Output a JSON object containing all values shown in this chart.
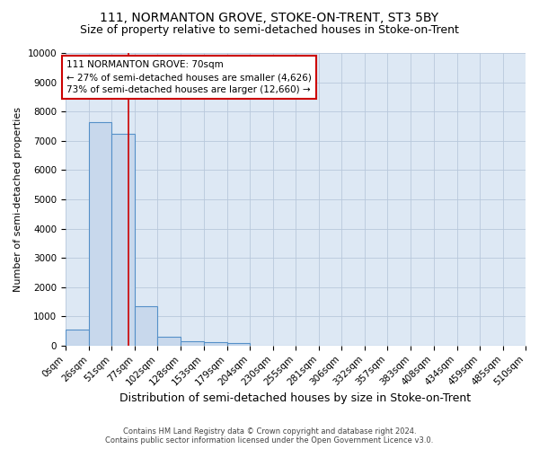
{
  "title": "111, NORMANTON GROVE, STOKE-ON-TRENT, ST3 5BY",
  "subtitle": "Size of property relative to semi-detached houses in Stoke-on-Trent",
  "xlabel": "Distribution of semi-detached houses by size in Stoke-on-Trent",
  "ylabel": "Number of semi-detached properties",
  "footer_line1": "Contains HM Land Registry data © Crown copyright and database right 2024.",
  "footer_line2": "Contains public sector information licensed under the Open Government Licence v3.0.",
  "annotation_title": "111 NORMANTON GROVE: 70sqm",
  "annotation_line1": "← 27% of semi-detached houses are smaller (4,626)",
  "annotation_line2": "73% of semi-detached houses are larger (12,660) →",
  "property_size": 70,
  "bin_edges": [
    0,
    26,
    51,
    77,
    102,
    128,
    153,
    179,
    204,
    230,
    255,
    281,
    306,
    332,
    357,
    383,
    408,
    434,
    459,
    485,
    510
  ],
  "bin_heights": [
    560,
    7650,
    7250,
    1350,
    310,
    160,
    110,
    90,
    0,
    0,
    0,
    0,
    0,
    0,
    0,
    0,
    0,
    0,
    0,
    0
  ],
  "bar_color": "#c8d8ec",
  "bar_edge_color": "#5590c8",
  "vline_color": "#cc0000",
  "vline_x": 70,
  "annotation_box_color": "#cc0000",
  "background_color": "#ffffff",
  "plot_bg_color": "#dde8f4",
  "grid_color": "#b8c8dc",
  "ylim": [
    0,
    10000
  ],
  "yticks": [
    0,
    1000,
    2000,
    3000,
    4000,
    5000,
    6000,
    7000,
    8000,
    9000,
    10000
  ],
  "title_fontsize": 10,
  "subtitle_fontsize": 9,
  "xlabel_fontsize": 9,
  "ylabel_fontsize": 8,
  "tick_fontsize": 7.5,
  "annotation_fontsize": 7.5
}
